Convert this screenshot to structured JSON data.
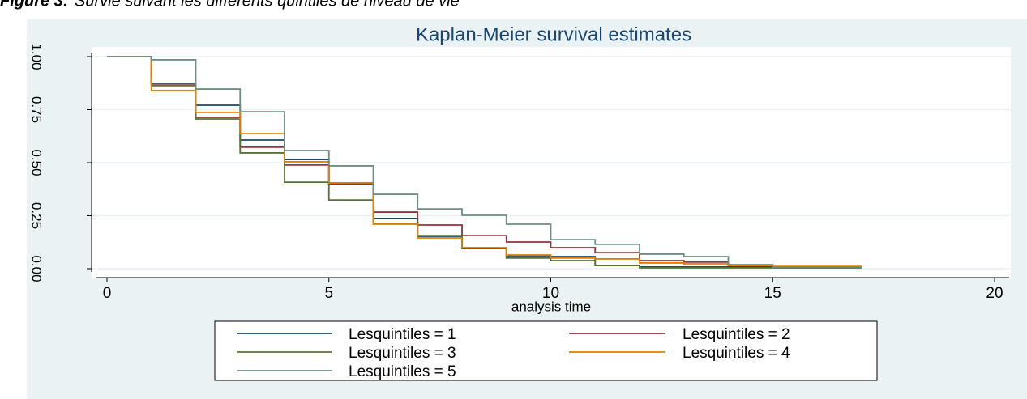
{
  "caption": {
    "label": "Figure 3:",
    "text": "Survie suivant les différents quintiles de niveau de vie"
  },
  "chart_data": {
    "type": "step",
    "title": "Kaplan-Meier survival estimates",
    "x_label": "analysis time",
    "x": [
      0,
      1,
      2,
      3,
      4,
      5,
      6,
      7,
      8,
      9,
      10,
      11,
      12,
      13,
      14,
      15,
      16,
      17
    ],
    "series": [
      {
        "name": "Lesquintiles = 1",
        "color": "#1a476f",
        "values": [
          1,
          0.874,
          0.771,
          0.607,
          0.515,
          0.4,
          0.237,
          0.153,
          0.095,
          0.061,
          0.057,
          0.015,
          0.008,
          0.008,
          0.008,
          0.008,
          0.008,
          0.008
        ]
      },
      {
        "name": "Lesquintiles = 2",
        "color": "#90353b",
        "values": [
          1,
          0.866,
          0.714,
          0.573,
          0.489,
          0.4,
          0.267,
          0.206,
          0.156,
          0.126,
          0.099,
          0.076,
          0.038,
          0.031,
          0.015,
          0.008,
          0.008,
          0.008
        ]
      },
      {
        "name": "Lesquintiles = 3",
        "color": "#55752f",
        "values": [
          1,
          0.863,
          0.706,
          0.546,
          0.408,
          0.324,
          0.214,
          0.156,
          0.095,
          0.05,
          0.038,
          0.015,
          0.004,
          0.004,
          0.004,
          0.004,
          0.004,
          0.004
        ]
      },
      {
        "name": "Lesquintiles = 4",
        "color": "#e37e00",
        "values": [
          1,
          0.84,
          0.737,
          0.637,
          0.504,
          0.405,
          0.21,
          0.145,
          0.099,
          0.065,
          0.05,
          0.046,
          0.027,
          0.023,
          0.015,
          0.011,
          0.011,
          0.011
        ]
      },
      {
        "name": "Lesquintiles = 5",
        "color": "#6e8e84",
        "values": [
          1,
          0.985,
          0.847,
          0.74,
          0.557,
          0.485,
          0.351,
          0.282,
          0.252,
          0.21,
          0.137,
          0.115,
          0.069,
          0.057,
          0.019,
          0.008,
          0.008,
          0.008
        ]
      }
    ],
    "xlim": [
      0,
      20
    ],
    "xticks": [
      0,
      5,
      10,
      15,
      20
    ],
    "ylim": [
      0,
      1
    ],
    "yticks": [
      {
        "value": 0,
        "label": "0.00"
      },
      {
        "value": 0.25,
        "label": "0.25"
      },
      {
        "value": 0.5,
        "label": "0.50"
      },
      {
        "value": 0.75,
        "label": "0.75"
      },
      {
        "value": 1,
        "label": "1.00"
      }
    ],
    "grid": true
  }
}
